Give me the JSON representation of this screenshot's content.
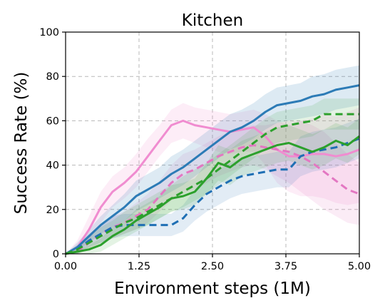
{
  "chart_data": {
    "type": "line",
    "title": "Kitchen",
    "xlabel": "Environment steps (1M)",
    "ylabel": "Success Rate (%)",
    "xlim": [
      0,
      5
    ],
    "ylim": [
      0,
      100
    ],
    "xticks": [
      0,
      1.25,
      2.5,
      3.75,
      5
    ],
    "xtick_labels": [
      "0.00",
      "1.25",
      "2.50",
      "3.75",
      "5.00"
    ],
    "yticks": [
      0,
      20,
      40,
      60,
      80,
      100
    ],
    "ytick_labels": [
      "0",
      "20",
      "40",
      "60",
      "80",
      "100"
    ],
    "grid": true,
    "legend": "none",
    "series": [
      {
        "color": "#f08cd0",
        "dash": "solid",
        "band_opacity": 0.16,
        "x": [
          0,
          0.2,
          0.4,
          0.6,
          0.8,
          1.0,
          1.2,
          1.4,
          1.6,
          1.8,
          2.0,
          2.2,
          2.4,
          2.6,
          2.8,
          3.0,
          3.2,
          3.4,
          3.6,
          3.8,
          4.0,
          4.2,
          4.4,
          4.6,
          4.8,
          5.0
        ],
        "y": [
          0,
          3,
          11,
          21,
          28,
          32,
          37,
          44,
          51,
          58,
          60,
          58,
          57,
          56,
          55,
          56,
          57,
          53,
          47,
          44,
          44,
          45,
          45,
          44,
          45,
          47
        ],
        "lower": [
          0,
          1,
          6,
          14,
          21,
          25,
          30,
          37,
          44,
          50,
          52,
          50,
          48,
          46,
          45,
          46,
          46,
          40,
          32,
          28,
          26,
          26,
          25,
          23,
          22,
          23
        ],
        "upper": [
          0,
          6,
          17,
          28,
          35,
          39,
          45,
          52,
          58,
          65,
          68,
          66,
          65,
          64,
          63,
          64,
          65,
          63,
          60,
          58,
          60,
          61,
          63,
          62,
          64,
          66
        ]
      },
      {
        "color": "#e377c2",
        "dash": "dashed",
        "band_opacity": 0.14,
        "x": [
          0,
          0.2,
          0.4,
          0.6,
          0.8,
          1.0,
          1.2,
          1.4,
          1.6,
          1.8,
          2.0,
          2.2,
          2.4,
          2.6,
          2.8,
          3.0,
          3.2,
          3.4,
          3.6,
          3.8,
          4.0,
          4.2,
          4.4,
          4.6,
          4.8,
          5.0
        ],
        "y": [
          0,
          1,
          5,
          9,
          12,
          14,
          17,
          20,
          26,
          32,
          36,
          38,
          41,
          44,
          46,
          48,
          49,
          48,
          47,
          46,
          44,
          41,
          37,
          33,
          29,
          27
        ],
        "lower": [
          0,
          0,
          2,
          5,
          7,
          9,
          11,
          14,
          19,
          24,
          27,
          29,
          32,
          35,
          37,
          39,
          40,
          38,
          35,
          32,
          28,
          24,
          20,
          17,
          14,
          13
        ],
        "upper": [
          0,
          3,
          8,
          13,
          17,
          19,
          23,
          27,
          33,
          40,
          45,
          47,
          50,
          53,
          55,
          57,
          58,
          58,
          59,
          60,
          60,
          58,
          55,
          50,
          45,
          41
        ]
      },
      {
        "color": "#2c7bb6",
        "dash": "solid",
        "band_opacity": 0.16,
        "x": [
          0,
          0.2,
          0.4,
          0.6,
          0.8,
          1.0,
          1.2,
          1.4,
          1.6,
          1.8,
          2.0,
          2.2,
          2.4,
          2.6,
          2.8,
          3.0,
          3.2,
          3.4,
          3.6,
          3.8,
          4.0,
          4.2,
          4.4,
          4.6,
          4.8,
          5.0
        ],
        "y": [
          0,
          3,
          8,
          13,
          17,
          21,
          26,
          29,
          32,
          36,
          39,
          43,
          47,
          51,
          55,
          57,
          60,
          64,
          67,
          68,
          69,
          71,
          72,
          74,
          75,
          76
        ],
        "lower": [
          0,
          1,
          5,
          9,
          12,
          15,
          19,
          22,
          25,
          28,
          31,
          35,
          39,
          43,
          47,
          49,
          52,
          56,
          59,
          60,
          61,
          62,
          63,
          65,
          66,
          67
        ],
        "upper": [
          0,
          5,
          11,
          17,
          22,
          27,
          33,
          36,
          39,
          44,
          47,
          51,
          55,
          59,
          63,
          65,
          68,
          72,
          75,
          76,
          77,
          80,
          81,
          83,
          84,
          85
        ]
      },
      {
        "color": "#1f6fb4",
        "dash": "dashed",
        "band_opacity": 0.13,
        "x": [
          0,
          0.2,
          0.4,
          0.6,
          0.8,
          1.0,
          1.2,
          1.4,
          1.6,
          1.8,
          2.0,
          2.2,
          2.4,
          2.6,
          2.8,
          3.0,
          3.2,
          3.4,
          3.6,
          3.8,
          4.0,
          4.2,
          4.4,
          4.6,
          4.8,
          5.0
        ],
        "y": [
          0,
          2,
          6,
          9,
          12,
          13,
          13,
          13,
          13,
          13,
          16,
          22,
          27,
          30,
          33,
          35,
          36,
          37,
          38,
          38,
          44,
          46,
          47,
          48,
          50,
          52
        ],
        "lower": [
          0,
          0,
          3,
          5,
          7,
          8,
          8,
          8,
          8,
          8,
          10,
          15,
          19,
          22,
          25,
          27,
          28,
          29,
          30,
          30,
          35,
          37,
          38,
          39,
          41,
          43
        ],
        "upper": [
          0,
          4,
          9,
          13,
          17,
          18,
          18,
          18,
          18,
          18,
          22,
          29,
          35,
          38,
          41,
          43,
          44,
          45,
          46,
          46,
          53,
          55,
          56,
          57,
          59,
          61
        ]
      },
      {
        "color": "#2ca02c",
        "dash": "solid",
        "band_opacity": 0.13,
        "x": [
          0,
          0.2,
          0.4,
          0.6,
          0.8,
          1.0,
          1.2,
          1.4,
          1.6,
          1.8,
          2.0,
          2.2,
          2.4,
          2.6,
          2.8,
          3.0,
          3.2,
          3.4,
          3.6,
          3.8,
          4.0,
          4.2,
          4.4,
          4.6,
          4.8,
          5.0
        ],
        "y": [
          0,
          1,
          2,
          4,
          8,
          11,
          15,
          18,
          21,
          25,
          26,
          28,
          34,
          41,
          39,
          43,
          45,
          47,
          49,
          50,
          48,
          46,
          48,
          51,
          49,
          53
        ],
        "lower": [
          0,
          0,
          0,
          1,
          4,
          7,
          10,
          13,
          16,
          19,
          20,
          22,
          27,
          33,
          31,
          35,
          37,
          39,
          41,
          42,
          40,
          38,
          40,
          43,
          41,
          45
        ],
        "upper": [
          0,
          2,
          4,
          7,
          12,
          15,
          20,
          23,
          26,
          31,
          32,
          34,
          41,
          49,
          47,
          51,
          53,
          55,
          57,
          58,
          56,
          54,
          56,
          59,
          57,
          61
        ]
      },
      {
        "color": "#2ca02c",
        "dash": "dashed",
        "band_opacity": 0.13,
        "x": [
          0,
          0.2,
          0.4,
          0.6,
          0.8,
          1.0,
          1.2,
          1.4,
          1.6,
          1.8,
          2.0,
          2.2,
          2.4,
          2.6,
          2.8,
          3.0,
          3.2,
          3.4,
          3.6,
          3.8,
          4.0,
          4.2,
          4.4,
          4.6,
          4.8,
          5.0
        ],
        "y": [
          0,
          2,
          5,
          8,
          11,
          14,
          16,
          19,
          22,
          25,
          28,
          31,
          34,
          38,
          42,
          46,
          50,
          54,
          57,
          58,
          59,
          60,
          63,
          63,
          63,
          63
        ],
        "lower": [
          0,
          0,
          2,
          4,
          7,
          9,
          11,
          13,
          16,
          19,
          21,
          24,
          27,
          31,
          35,
          39,
          43,
          47,
          50,
          51,
          52,
          53,
          56,
          56,
          56,
          56
        ],
        "upper": [
          0,
          4,
          8,
          12,
          15,
          19,
          22,
          25,
          28,
          31,
          35,
          38,
          41,
          45,
          49,
          53,
          57,
          61,
          64,
          65,
          66,
          67,
          70,
          70,
          70,
          70
        ]
      }
    ]
  }
}
